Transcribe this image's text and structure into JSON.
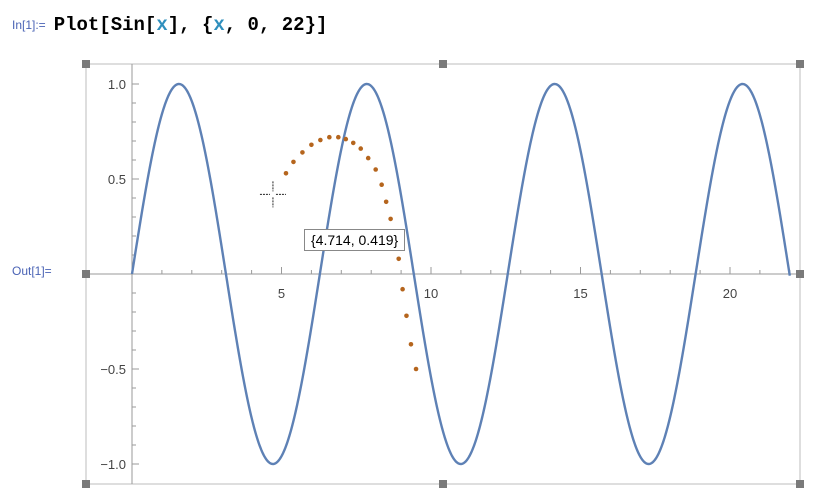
{
  "notebook": {
    "input_label": "In[1]:=",
    "input_tokens": [
      {
        "text": "Plot[",
        "kind": "plain"
      },
      {
        "text": "Sin[",
        "kind": "plain"
      },
      {
        "text": "x",
        "kind": "symbol"
      },
      {
        "text": "], {",
        "kind": "plain"
      },
      {
        "text": "x",
        "kind": "symbol"
      },
      {
        "text": ", 0, 22}]",
        "kind": "plain"
      }
    ],
    "output_label": "Out[1]=",
    "coordinate_readout": "{4.714, 0.419}"
  },
  "chart_data": {
    "type": "line",
    "function": "Sin[x]",
    "xlim": [
      0,
      22
    ],
    "ylim": [
      -1.0,
      1.0
    ],
    "x_ticks": [
      5,
      10,
      15,
      20
    ],
    "x_tick_labels": [
      "5",
      "10",
      "15",
      "20"
    ],
    "y_ticks": [
      -1.0,
      -0.5,
      0.5,
      1.0
    ],
    "y_tick_labels": [
      "−1.0",
      "−0.5",
      "0.5",
      "1.0"
    ],
    "grid": false,
    "series": [
      {
        "style": "curve",
        "color": "#5e81b5",
        "x_start": 0,
        "x_end": 22
      },
      {
        "style": "dotted-trail",
        "color": "#b5651d",
        "points": [
          [
            5.15,
            0.53
          ],
          [
            5.4,
            0.59
          ],
          [
            5.7,
            0.64
          ],
          [
            6.0,
            0.68
          ],
          [
            6.3,
            0.705
          ],
          [
            6.6,
            0.72
          ],
          [
            6.9,
            0.72
          ],
          [
            7.15,
            0.71
          ],
          [
            7.4,
            0.69
          ],
          [
            7.65,
            0.66
          ],
          [
            7.9,
            0.61
          ],
          [
            8.15,
            0.55
          ],
          [
            8.35,
            0.47
          ],
          [
            8.5,
            0.38
          ],
          [
            8.65,
            0.29
          ],
          [
            8.8,
            0.19
          ],
          [
            8.92,
            0.08
          ],
          [
            9.05,
            -0.08
          ],
          [
            9.18,
            -0.22
          ],
          [
            9.33,
            -0.37
          ],
          [
            9.5,
            -0.5
          ]
        ]
      }
    ],
    "cursor": {
      "x": 4.714,
      "y": 0.419
    }
  },
  "colors": {
    "curve": "#5e81b5",
    "trail": "#b5651d",
    "cell_label": "#4a63b5",
    "symbol": "#2f8fbd"
  }
}
